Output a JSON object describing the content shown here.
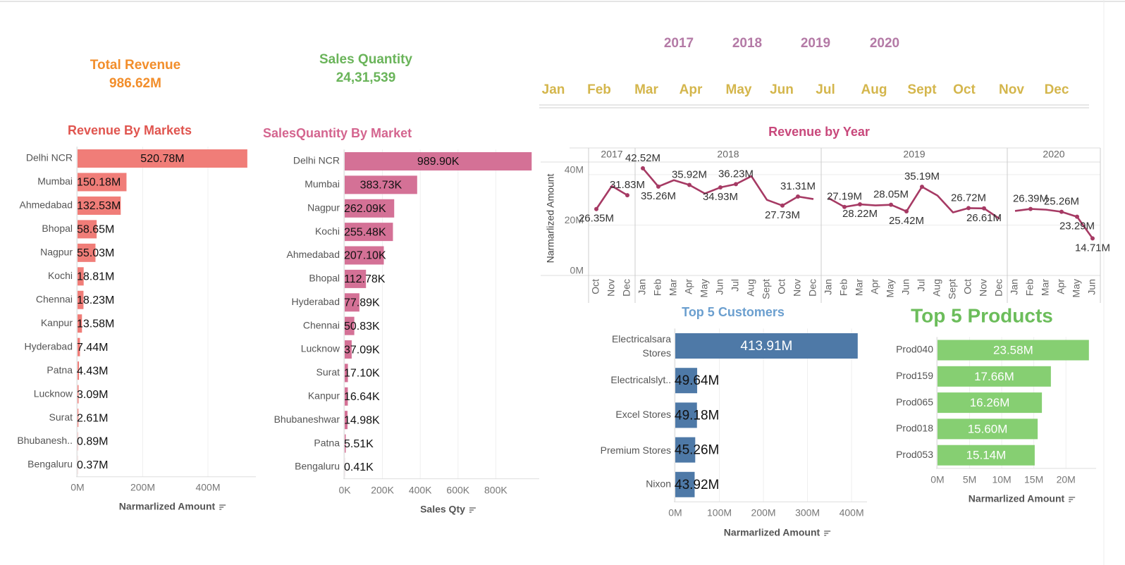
{
  "kpis": [
    {
      "label": "Total Revenue",
      "value": "986.62M",
      "color": "#f28e2b"
    },
    {
      "label": "Sales Quantity",
      "value": "24,31,539",
      "color": "#6ab45a"
    }
  ],
  "year_filter": {
    "items": [
      "2017",
      "2018",
      "2019",
      "2020"
    ],
    "color": "#b47aa6"
  },
  "month_filter": {
    "items": [
      "Jan",
      "Feb",
      "Mar",
      "Apr",
      "May",
      "Jun",
      "Jul",
      "Aug",
      "Sept",
      "Oct",
      "Nov",
      "Dec"
    ],
    "color": "#d4b64c"
  },
  "chart_data": [
    {
      "type": "bar",
      "orientation": "horizontal",
      "title": "Revenue By Markets",
      "title_color": "#e0554f",
      "x_label": "Narmarlized Amount",
      "color": "#f07d78",
      "categories": [
        "Delhi NCR",
        "Mumbai",
        "Ahmedabad",
        "Bhopal",
        "Nagpur",
        "Kochi",
        "Chennai",
        "Kanpur",
        "Hyderabad",
        "Patna",
        "Lucknow",
        "Surat",
        "Bhubanesh..",
        "Bengaluru"
      ],
      "values": [
        520.78,
        150.18,
        132.53,
        58.65,
        55.03,
        18.81,
        18.23,
        13.58,
        7.44,
        4.43,
        3.09,
        2.61,
        0.89,
        0.37
      ],
      "value_labels": [
        "520.78M",
        "150.18M",
        "132.53M",
        "58.65M",
        "55.03M",
        "18.81M",
        "18.23M",
        "13.58M",
        "7.44M",
        "4.43M",
        "3.09M",
        "2.61M",
        "0.89M",
        "0.37M"
      ],
      "xlim": [
        0,
        547
      ],
      "xticks": [
        {
          "value": 0,
          "label": "0M"
        },
        {
          "value": 200,
          "label": "200M"
        },
        {
          "value": 400,
          "label": "400M"
        }
      ],
      "label_color": "#111111"
    },
    {
      "type": "bar",
      "orientation": "horizontal",
      "title": "SalesQuantity By Market",
      "title_color": "#d4658f",
      "x_label": "Sales Qty",
      "color": "#d47196",
      "categories": [
        "Delhi NCR",
        "Mumbai",
        "Nagpur",
        "Kochi",
        "Ahmedabad",
        "Bhopal",
        "Hyderabad",
        "Chennai",
        "Lucknow",
        "Surat",
        "Kanpur",
        "Bhubaneshwar",
        "Patna",
        "Bengaluru"
      ],
      "values": [
        989.9,
        383.73,
        262.09,
        255.48,
        207.1,
        112.78,
        77.89,
        50.83,
        37.09,
        17.1,
        16.64,
        14.98,
        5.51,
        0.41
      ],
      "value_labels": [
        "989.90K",
        "383.73K",
        "262.09K",
        "255.48K",
        "207.10K",
        "112.78K",
        "77.89K",
        "50.83K",
        "37.09K",
        "17.10K",
        "16.64K",
        "14.98K",
        "5.51K",
        "0.41K"
      ],
      "xlim": [
        0,
        1030
      ],
      "xticks": [
        {
          "value": 0,
          "label": "0K"
        },
        {
          "value": 200,
          "label": "200K"
        },
        {
          "value": 400,
          "label": "400K"
        },
        {
          "value": 600,
          "label": "600K"
        },
        {
          "value": 800,
          "label": "800K"
        }
      ],
      "label_color": "#111111"
    },
    {
      "type": "line",
      "title": "Revenue by Year",
      "title_color": "#c8487b",
      "y_label": "Narmarlized Amount",
      "color": "#a63a64",
      "ylim": [
        0,
        45
      ],
      "yticks": [
        {
          "value": 0,
          "label": "0M"
        },
        {
          "value": 20,
          "label": "20M"
        },
        {
          "value": 40,
          "label": "40M"
        }
      ],
      "grid": true,
      "panels": [
        {
          "label": "2017",
          "categories": [
            "Oct",
            "Nov",
            "Dec"
          ],
          "values": [
            26.35,
            35.5,
            31.83
          ],
          "value_labels": [
            "26.35M",
            null,
            "31.83M"
          ]
        },
        {
          "label": "2018",
          "categories": [
            "Jan",
            "Feb",
            "Mar",
            "Apr",
            "May",
            "Jun",
            "Jul",
            "Aug",
            "Sept",
            "Oct",
            "Nov",
            "Dec"
          ],
          "values": [
            42.52,
            35.26,
            37.8,
            35.92,
            32.5,
            34.93,
            36.23,
            39.4,
            30.0,
            27.73,
            31.31,
            30.3
          ],
          "value_labels": [
            "42.52M",
            "35.26M",
            null,
            "35.92M",
            null,
            "34.93M",
            "36.23M",
            null,
            null,
            "27.73M",
            "31.31M",
            null
          ]
        },
        {
          "label": "2019",
          "categories": [
            "Jan",
            "Feb",
            "Mar",
            "Apr",
            "May",
            "Jun",
            "Jul",
            "Aug",
            "Sept",
            "Oct",
            "Nov",
            "Dec"
          ],
          "values": [
            30.6,
            27.19,
            28.22,
            27.8,
            28.05,
            25.42,
            35.19,
            31.7,
            25.0,
            26.72,
            26.61,
            22.5
          ],
          "value_labels": [
            null,
            "27.19M",
            "28.22M",
            null,
            "28.05M",
            "25.42M",
            "35.19M",
            null,
            null,
            "26.72M",
            "26.61M",
            null
          ]
        },
        {
          "label": "2020",
          "categories": [
            "Jan",
            "Feb",
            "Mar",
            "Apr",
            "May",
            "Jun"
          ],
          "values": [
            25.6,
            26.39,
            26.1,
            25.26,
            23.29,
            14.71
          ],
          "value_labels": [
            null,
            "26.39M",
            null,
            "25.26M",
            "23.29M",
            "14.71M"
          ]
        }
      ]
    },
    {
      "type": "bar",
      "orientation": "horizontal",
      "title": "Top 5 Customers",
      "title_color": "#6b9fcf",
      "x_label": "Narmarlized Amount",
      "color": "#4e79a7",
      "categories": [
        "Electricalsara Stores",
        "Electricalslyt..",
        "Excel Stores",
        "Premium Stores",
        "Nixon"
      ],
      "values": [
        413.91,
        49.64,
        49.18,
        45.26,
        43.92
      ],
      "value_labels": [
        "413.91M",
        "49.64M",
        "49.18M",
        "45.26M",
        "43.92M"
      ],
      "xlim": [
        0,
        435
      ],
      "xticks": [
        {
          "value": 0,
          "label": "0M"
        },
        {
          "value": 100,
          "label": "100M"
        },
        {
          "value": 200,
          "label": "200M"
        },
        {
          "value": 300,
          "label": "300M"
        },
        {
          "value": 400,
          "label": "400M"
        }
      ],
      "label_color": "#ffffff"
    },
    {
      "type": "bar",
      "orientation": "horizontal",
      "title": "Top 5 Products",
      "title_color": "#6cbd5b",
      "x_label": "Narmarlized Amount",
      "color": "#86cf72",
      "categories": [
        "Prod040",
        "Prod159",
        "Prod065",
        "Prod018",
        "Prod053"
      ],
      "values": [
        23.58,
        17.66,
        16.26,
        15.6,
        15.14
      ],
      "value_labels": [
        "23.58M",
        "17.66M",
        "16.26M",
        "15.60M",
        "15.14M"
      ],
      "xlim": [
        0,
        24.7
      ],
      "xticks": [
        {
          "value": 0,
          "label": "0M"
        },
        {
          "value": 5,
          "label": "5M"
        },
        {
          "value": 10,
          "label": "10M"
        },
        {
          "value": 15,
          "label": "15M"
        },
        {
          "value": 20,
          "label": "20M"
        }
      ],
      "label_color": "#ffffff"
    }
  ]
}
